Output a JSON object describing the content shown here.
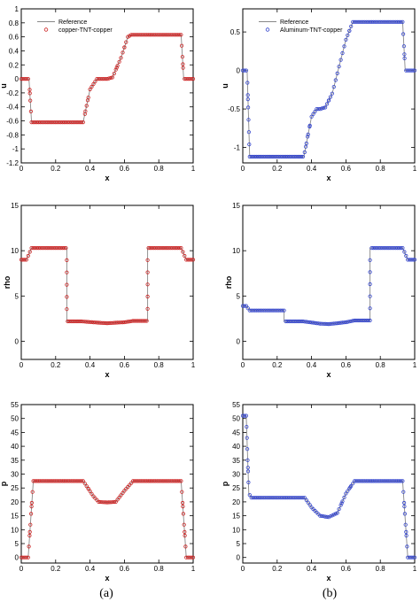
{
  "captions": {
    "left": "(a)",
    "right": "(b)"
  },
  "colors": {
    "reference_line": "#888888",
    "red_series": "#cc2222",
    "blue_series": "#3344cc"
  },
  "chart_data": [
    {
      "type": "line",
      "panel": "top-left",
      "xlabel": "x",
      "ylabel": "u",
      "xlim": [
        0,
        1
      ],
      "ylim": [
        -1.2,
        1
      ],
      "xticks": [
        0,
        0.2,
        0.4,
        0.6,
        0.8,
        1
      ],
      "xtick_labels": [
        "0",
        "0.2",
        "0.4",
        "0.6",
        "0.8",
        "1"
      ],
      "yticks": [
        -1.2,
        -1,
        -0.8,
        -0.6,
        -0.4,
        -0.2,
        0,
        0.2,
        0.4,
        0.6,
        0.8,
        1
      ],
      "ytick_labels": [
        "-1.2",
        "-1",
        "-0.8",
        "-0.6",
        "-0.4",
        "-0.2",
        "0",
        "0.2",
        "0.4",
        "0.6",
        "0.8",
        "1"
      ],
      "legend": {
        "position": "top-left",
        "entries": [
          "Reference",
          "copper-TNT-copper"
        ]
      },
      "series": [
        {
          "name": "Reference",
          "style": "line",
          "color": "#888888",
          "x": [
            0,
            0.045,
            0.06,
            0.36,
            0.4,
            0.44,
            0.47,
            0.5,
            0.53,
            0.58,
            0.62,
            0.64,
            0.93,
            0.945,
            1
          ],
          "y": [
            0,
            0,
            -0.62,
            -0.62,
            -0.15,
            0,
            0,
            0,
            0.02,
            0.3,
            0.6,
            0.63,
            0.63,
            0,
            0
          ]
        },
        {
          "name": "copper-TNT-copper",
          "style": "markers",
          "color": "#cc2222",
          "x": [
            0,
            0.045,
            0.06,
            0.36,
            0.4,
            0.44,
            0.47,
            0.5,
            0.53,
            0.58,
            0.62,
            0.64,
            0.93,
            0.945,
            1
          ],
          "y": [
            0,
            0,
            -0.62,
            -0.62,
            -0.15,
            0,
            0,
            0,
            0.02,
            0.3,
            0.6,
            0.63,
            0.63,
            0,
            0
          ]
        }
      ]
    },
    {
      "type": "line",
      "panel": "top-right",
      "xlabel": "x",
      "ylabel": "u",
      "xlim": [
        0,
        1
      ],
      "ylim": [
        -1.2,
        0.8
      ],
      "xticks": [
        0,
        0.2,
        0.4,
        0.6,
        0.8,
        1
      ],
      "xtick_labels": [
        "0",
        "0.2",
        "0.4",
        "0.6",
        "0.8",
        "1"
      ],
      "yticks": [
        -1,
        -0.5,
        0,
        0.5
      ],
      "ytick_labels": [
        "-1",
        "-0.5",
        "0",
        "0.5"
      ],
      "legend": {
        "position": "top-left",
        "entries": [
          "Reference",
          "Aluminum-TNT-copper"
        ]
      },
      "series": [
        {
          "name": "Reference",
          "style": "line",
          "color": "#888888",
          "x": [
            0,
            0.025,
            0.04,
            0.355,
            0.4,
            0.43,
            0.45,
            0.48,
            0.52,
            0.6,
            0.64,
            0.93,
            0.945,
            1
          ],
          "y": [
            0,
            0,
            -1.12,
            -1.12,
            -0.6,
            -0.5,
            -0.5,
            -0.48,
            -0.3,
            0.4,
            0.63,
            0.63,
            0,
            0
          ]
        },
        {
          "name": "Aluminum-TNT-copper",
          "style": "markers",
          "color": "#3344cc",
          "x": [
            0,
            0.025,
            0.04,
            0.355,
            0.4,
            0.43,
            0.45,
            0.48,
            0.52,
            0.6,
            0.64,
            0.93,
            0.945,
            1
          ],
          "y": [
            0,
            0,
            -1.12,
            -1.12,
            -0.6,
            -0.5,
            -0.5,
            -0.48,
            -0.3,
            0.4,
            0.63,
            0.63,
            0,
            0
          ]
        }
      ]
    },
    {
      "type": "line",
      "panel": "middle-left",
      "xlabel": "x",
      "ylabel": "rho",
      "xlim": [
        0,
        1
      ],
      "ylim": [
        -2,
        15
      ],
      "xticks": [
        0,
        0.2,
        0.4,
        0.6,
        0.8,
        1
      ],
      "xtick_labels": [
        "0",
        "0.2",
        "0.4",
        "0.6",
        "0.8",
        "1"
      ],
      "yticks": [
        0,
        5,
        10,
        15
      ],
      "ytick_labels": [
        "0",
        "5",
        "10",
        "15"
      ],
      "series": [
        {
          "name": "",
          "style": "line",
          "color": "#888888",
          "x": [
            0,
            0.03,
            0.06,
            0.265,
            0.265,
            0.35,
            0.45,
            0.5,
            0.6,
            0.65,
            0.735,
            0.735,
            0.93,
            0.96,
            1
          ],
          "y": [
            9,
            9,
            10.3,
            10.3,
            2.2,
            2.2,
            2.05,
            2.0,
            2.1,
            2.25,
            2.25,
            10.3,
            10.3,
            9,
            9
          ]
        },
        {
          "name": "",
          "style": "markers",
          "color": "#cc2222",
          "x": [
            0,
            0.03,
            0.06,
            0.265,
            0.265,
            0.35,
            0.45,
            0.5,
            0.6,
            0.65,
            0.735,
            0.735,
            0.93,
            0.96,
            1
          ],
          "y": [
            9,
            9,
            10.3,
            10.3,
            2.2,
            2.2,
            2.05,
            2.0,
            2.1,
            2.25,
            2.25,
            10.3,
            10.3,
            9,
            9
          ]
        }
      ]
    },
    {
      "type": "line",
      "panel": "middle-right",
      "xlabel": "x",
      "ylabel": "rho",
      "xlim": [
        0,
        1
      ],
      "ylim": [
        -2,
        15
      ],
      "xticks": [
        0,
        0.2,
        0.4,
        0.6,
        0.8,
        1
      ],
      "xtick_labels": [
        "0",
        "0.2",
        "0.4",
        "0.6",
        "0.8",
        "1"
      ],
      "yticks": [
        0,
        5,
        10,
        15
      ],
      "ytick_labels": [
        "0",
        "5",
        "10",
        "15"
      ],
      "series": [
        {
          "name": "",
          "style": "line",
          "color": "#888888",
          "x": [
            0,
            0.02,
            0.04,
            0.24,
            0.24,
            0.35,
            0.45,
            0.5,
            0.6,
            0.65,
            0.74,
            0.74,
            0.93,
            0.96,
            1
          ],
          "y": [
            3.9,
            3.9,
            3.4,
            3.4,
            2.2,
            2.2,
            1.95,
            1.9,
            2.1,
            2.3,
            2.3,
            10.3,
            10.3,
            9,
            9
          ]
        },
        {
          "name": "",
          "style": "markers",
          "color": "#3344cc",
          "x": [
            0,
            0.02,
            0.04,
            0.24,
            0.24,
            0.35,
            0.45,
            0.5,
            0.6,
            0.65,
            0.74,
            0.74,
            0.93,
            0.96,
            1
          ],
          "y": [
            3.9,
            3.9,
            3.4,
            3.4,
            2.2,
            2.2,
            1.95,
            1.9,
            2.1,
            2.3,
            2.3,
            10.3,
            10.3,
            9,
            9
          ]
        }
      ]
    },
    {
      "type": "line",
      "panel": "bottom-left",
      "xlabel": "x",
      "ylabel": "p",
      "xlim": [
        0,
        1
      ],
      "ylim": [
        -2,
        55
      ],
      "xticks": [
        0,
        0.2,
        0.4,
        0.6,
        0.8,
        1
      ],
      "xtick_labels": [
        "0",
        "0.2",
        "0.4",
        "0.6",
        "0.8",
        "1"
      ],
      "yticks": [
        0,
        5,
        10,
        15,
        20,
        25,
        30,
        35,
        40,
        45,
        50,
        55
      ],
      "ytick_labels": [
        "0",
        "5",
        "10",
        "15",
        "20",
        "25",
        "30",
        "35",
        "40",
        "45",
        "50",
        "55"
      ],
      "series": [
        {
          "name": "",
          "style": "line",
          "color": "#888888",
          "x": [
            0,
            0.04,
            0.07,
            0.36,
            0.42,
            0.45,
            0.5,
            0.55,
            0.6,
            0.65,
            0.93,
            0.96,
            1
          ],
          "y": [
            0,
            0,
            27.5,
            27.5,
            22,
            20,
            19.8,
            20,
            24,
            27.5,
            27.5,
            0,
            0
          ]
        },
        {
          "name": "",
          "style": "markers",
          "color": "#cc2222",
          "x": [
            0,
            0.04,
            0.07,
            0.36,
            0.42,
            0.45,
            0.5,
            0.55,
            0.6,
            0.65,
            0.93,
            0.96,
            1
          ],
          "y": [
            0,
            0,
            27.5,
            27.5,
            22,
            20,
            19.8,
            20,
            24,
            27.5,
            27.5,
            0,
            0
          ]
        }
      ]
    },
    {
      "type": "line",
      "panel": "bottom-right",
      "xlabel": "x",
      "ylabel": "p",
      "xlim": [
        0,
        1
      ],
      "ylim": [
        -2,
        55
      ],
      "xticks": [
        0,
        0.2,
        0.4,
        0.6,
        0.8,
        1
      ],
      "xtick_labels": [
        "0",
        "0.2",
        "0.4",
        "0.6",
        "0.8",
        "1"
      ],
      "yticks": [
        0,
        5,
        10,
        15,
        20,
        25,
        30,
        35,
        40,
        45,
        50,
        55
      ],
      "ytick_labels": [
        "0",
        "5",
        "10",
        "15",
        "20",
        "25",
        "30",
        "35",
        "40",
        "45",
        "50",
        "55"
      ],
      "series": [
        {
          "name": "",
          "style": "line",
          "color": "#888888",
          "x": [
            0,
            0.02,
            0.035,
            0.05,
            0.36,
            0.4,
            0.45,
            0.5,
            0.55,
            0.6,
            0.65,
            0.93,
            0.96,
            1
          ],
          "y": [
            51,
            51,
            23,
            21.5,
            21.5,
            18,
            15,
            14.5,
            16,
            23,
            27.5,
            27.5,
            0,
            0
          ]
        },
        {
          "name": "",
          "style": "markers",
          "color": "#3344cc",
          "x": [
            0,
            0.02,
            0.035,
            0.05,
            0.36,
            0.4,
            0.45,
            0.5,
            0.55,
            0.6,
            0.65,
            0.93,
            0.96,
            1
          ],
          "y": [
            51,
            51,
            23,
            21.5,
            21.5,
            18,
            15,
            14.5,
            16,
            23,
            27.5,
            27.5,
            0,
            0
          ]
        }
      ]
    }
  ]
}
